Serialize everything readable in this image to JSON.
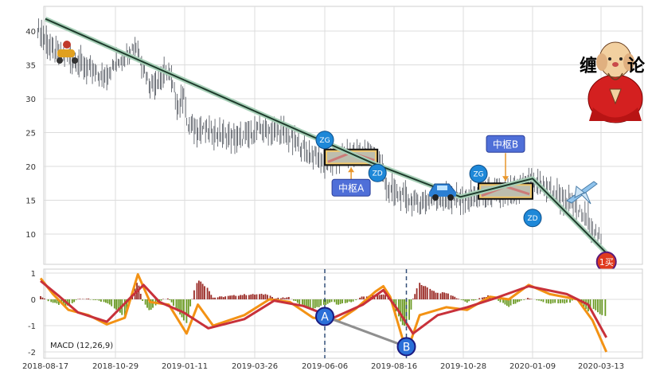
{
  "chart_data": [
    {
      "type": "candlestick",
      "title": "",
      "x_tick_labels": [
        "2018-08-17",
        "2018-10-29",
        "2019-01-11",
        "2019-03-26",
        "2019-06-06",
        "2019-08-16",
        "2019-10-28",
        "2020-01-09",
        "2020-03-13"
      ],
      "ylim": [
        6,
        45
      ],
      "y_ticks": [
        10,
        15,
        20,
        25,
        30,
        35,
        40
      ],
      "grid": true,
      "price_trace": [
        {
          "x": "2018-08-09",
          "y": 40.5
        },
        {
          "x": "2018-08-25",
          "y": 37
        },
        {
          "x": "2018-09-20",
          "y": 35.5
        },
        {
          "x": "2018-10-15",
          "y": 33
        },
        {
          "x": "2018-11-05",
          "y": 36
        },
        {
          "x": "2018-11-20",
          "y": 38
        },
        {
          "x": "2018-12-05",
          "y": 32
        },
        {
          "x": "2018-12-25",
          "y": 34
        },
        {
          "x": "2019-01-05",
          "y": 28.5
        },
        {
          "x": "2019-01-11",
          "y": 31.5
        },
        {
          "x": "2019-01-13",
          "y": 26
        },
        {
          "x": "2019-02-10",
          "y": 25
        },
        {
          "x": "2019-03-10",
          "y": 24
        },
        {
          "x": "2019-04-01",
          "y": 25.5
        },
        {
          "x": "2019-04-25",
          "y": 25
        },
        {
          "x": "2019-05-20",
          "y": 22
        },
        {
          "x": "2019-06-10",
          "y": 20.5
        },
        {
          "x": "2019-06-25",
          "y": 21.5
        },
        {
          "x": "2019-07-20",
          "y": 22
        },
        {
          "x": "2019-08-01",
          "y": 21
        },
        {
          "x": "2019-08-10",
          "y": 16.5
        },
        {
          "x": "2019-09-10",
          "y": 14.5
        },
        {
          "x": "2019-10-01",
          "y": 15.5
        },
        {
          "x": "2019-10-28",
          "y": 15
        },
        {
          "x": "2019-11-20",
          "y": 16
        },
        {
          "x": "2019-12-20",
          "y": 16
        },
        {
          "x": "2020-01-09",
          "y": 18
        },
        {
          "x": "2020-02-10",
          "y": 15
        },
        {
          "x": "2020-03-01",
          "y": 12
        },
        {
          "x": "2020-03-13",
          "y": 9
        }
      ],
      "trend_line": [
        {
          "x": "2018-08-17",
          "y": 41.8
        },
        {
          "x": "2019-07-25",
          "y": 20.5
        },
        {
          "x": "2019-10-25",
          "y": 15.5
        },
        {
          "x": "2020-01-09",
          "y": 18.2
        },
        {
          "x": "2020-03-18",
          "y": 7.2
        }
      ],
      "pivots": [
        {
          "label": "中枢A",
          "x_start": "2019-06-06",
          "x_end": "2019-07-30",
          "zg": 22.5,
          "zd": 20.2,
          "zg_label": "ZG",
          "zd_label": "ZD"
        },
        {
          "label": "中枢B",
          "x_start": "2019-11-13",
          "x_end": "2020-01-09",
          "zg": 17.5,
          "zd": 15.2,
          "zg_label": "ZG",
          "zd_label": "ZD"
        }
      ],
      "buy_point": {
        "label": "1买",
        "x": "2020-03-18",
        "y": 7.2
      },
      "badge": {
        "line1": "缠",
        "line2": "论"
      },
      "colors": {
        "trend": "#1e3b2c",
        "trend_halo": "#a8d0b8",
        "pivot_border": "#111111",
        "pivot_fill": "#f3c96b",
        "label_fill": "#4f6fd8",
        "circle_fill": "#1e88d8",
        "buy_fill": "#e03a1e",
        "arrow": "#e8962b"
      }
    },
    {
      "type": "line",
      "name": "MACD",
      "legend_label": "MACD (12,26,9)",
      "x_tick_labels": [
        "2018-08-17",
        "2018-10-29",
        "2019-01-11",
        "2019-03-26",
        "2019-06-06",
        "2019-08-16",
        "2019-10-28",
        "2020-01-09",
        "2020-03-13"
      ],
      "ylim": [
        -2.1,
        1.1
      ],
      "y_ticks": [
        1,
        0,
        -1,
        -2
      ],
      "grid": true,
      "dif": [
        {
          "x": "2018-08-12",
          "y": 0.8
        },
        {
          "x": "2018-08-25",
          "y": 0.2
        },
        {
          "x": "2018-09-10",
          "y": -0.4
        },
        {
          "x": "2018-10-01",
          "y": -0.6
        },
        {
          "x": "2018-10-20",
          "y": -0.95
        },
        {
          "x": "2018-11-08",
          "y": -0.7
        },
        {
          "x": "2018-11-22",
          "y": 0.95
        },
        {
          "x": "2018-12-05",
          "y": -0.1
        },
        {
          "x": "2018-12-25",
          "y": -0.2
        },
        {
          "x": "2019-01-13",
          "y": -1.3
        },
        {
          "x": "2019-01-25",
          "y": -0.2
        },
        {
          "x": "2019-02-10",
          "y": -1.0
        },
        {
          "x": "2019-03-15",
          "y": -0.6
        },
        {
          "x": "2019-04-10",
          "y": 0.0
        },
        {
          "x": "2019-05-01",
          "y": -0.1
        },
        {
          "x": "2019-05-25",
          "y": -0.7
        },
        {
          "x": "2019-06-20",
          "y": -0.8
        },
        {
          "x": "2019-07-08",
          "y": -0.35
        },
        {
          "x": "2019-07-28",
          "y": 0.3
        },
        {
          "x": "2019-08-05",
          "y": 0.5
        },
        {
          "x": "2019-08-12",
          "y": 0.1
        },
        {
          "x": "2019-08-25",
          "y": -1.5
        },
        {
          "x": "2019-08-31",
          "y": -1.85
        },
        {
          "x": "2019-09-12",
          "y": -0.6
        },
        {
          "x": "2019-10-10",
          "y": -0.3
        },
        {
          "x": "2019-11-01",
          "y": -0.4
        },
        {
          "x": "2019-11-25",
          "y": 0.1
        },
        {
          "x": "2019-12-15",
          "y": 0.0
        },
        {
          "x": "2020-01-05",
          "y": 0.55
        },
        {
          "x": "2020-01-25",
          "y": 0.2
        },
        {
          "x": "2020-02-20",
          "y": 0.0
        },
        {
          "x": "2020-03-05",
          "y": -0.8
        },
        {
          "x": "2020-03-18",
          "y": -2.0
        }
      ],
      "dea": [
        {
          "x": "2018-08-12",
          "y": 0.7
        },
        {
          "x": "2018-09-01",
          "y": 0.1
        },
        {
          "x": "2018-09-20",
          "y": -0.5
        },
        {
          "x": "2018-10-20",
          "y": -0.85
        },
        {
          "x": "2018-11-15",
          "y": 0.1
        },
        {
          "x": "2018-11-28",
          "y": 0.55
        },
        {
          "x": "2018-12-15",
          "y": -0.1
        },
        {
          "x": "2019-01-10",
          "y": -0.5
        },
        {
          "x": "2019-02-05",
          "y": -1.1
        },
        {
          "x": "2019-03-15",
          "y": -0.75
        },
        {
          "x": "2019-04-15",
          "y": -0.05
        },
        {
          "x": "2019-05-15",
          "y": -0.25
        },
        {
          "x": "2019-06-15",
          "y": -0.7
        },
        {
          "x": "2019-07-15",
          "y": -0.2
        },
        {
          "x": "2019-08-05",
          "y": 0.35
        },
        {
          "x": "2019-08-20",
          "y": -0.4
        },
        {
          "x": "2019-09-05",
          "y": -1.3
        },
        {
          "x": "2019-10-01",
          "y": -0.6
        },
        {
          "x": "2019-11-01",
          "y": -0.3
        },
        {
          "x": "2019-12-01",
          "y": 0.05
        },
        {
          "x": "2020-01-05",
          "y": 0.5
        },
        {
          "x": "2020-02-10",
          "y": 0.2
        },
        {
          "x": "2020-03-01",
          "y": -0.2
        },
        {
          "x": "2020-03-18",
          "y": -1.45
        }
      ],
      "divergence_points": [
        {
          "label": "A",
          "x": "2019-06-06",
          "y": -0.65
        },
        {
          "label": "B",
          "x": "2019-08-29",
          "y": -1.8
        }
      ],
      "reference_dates": [
        "2019-06-06",
        "2019-08-29"
      ],
      "colors": {
        "dif": "#f39214",
        "dea": "#c8313a",
        "hist_pos": "#9a2a25",
        "hist_neg": "#6a9a22",
        "marker_fill": "#2a6fd8",
        "marker_border": "#1a1a80",
        "divergence_line": "#8f8f8f",
        "ref_line": "#34507a"
      }
    }
  ]
}
